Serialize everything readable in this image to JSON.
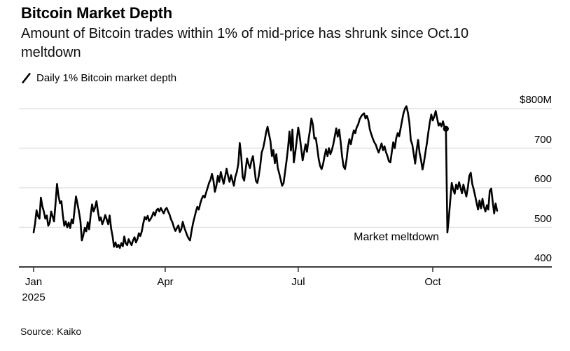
{
  "header": {
    "title": "Bitcoin Market Depth",
    "subtitle_line1": "Amount of Bitcoin trades within 1% of mid-price has shrunk since Oct.10",
    "subtitle_line2": "meltdown"
  },
  "legend": {
    "label": "Daily 1% Bitcoin market depth",
    "series_color": "#000000"
  },
  "footer": {
    "source": "Source: Kaiko"
  },
  "chart_data": {
    "type": "line",
    "title": "Bitcoin Market Depth",
    "unit": "$M",
    "ylim": [
      400,
      820
    ],
    "y_ticks": [
      800,
      700,
      600,
      500,
      400
    ],
    "y_tick_labels": [
      "$800M",
      "700",
      "600",
      "500",
      "400"
    ],
    "x_tick_labels": [
      "Jan",
      "Apr",
      "Jul",
      "Oct"
    ],
    "x_tick_day_index": [
      0,
      90,
      181,
      273
    ],
    "x_year_label": "2025",
    "grid": "horizontal",
    "legend_position": "top-left",
    "annotation": {
      "text": "Market meltdown"
    },
    "marker": {
      "day_index": 282,
      "value": 749
    },
    "series": [
      {
        "name": "Daily 1% Bitcoin market depth",
        "color": "#000000",
        "start_date": "2025-01-01",
        "frequency": "daily",
        "values": [
          487,
          510,
          543,
          528,
          522,
          575,
          553,
          540,
          522,
          530,
          504,
          512,
          540,
          528,
          515,
          560,
          610,
          580,
          561,
          566,
          530,
          504,
          515,
          500,
          512,
          498,
          520,
          510,
          545,
          578,
          560,
          540,
          517,
          467,
          480,
          499,
          490,
          513,
          495,
          530,
          558,
          540,
          550,
          566,
          540,
          517,
          525,
          508,
          518,
          531,
          520,
          508,
          530,
          497,
          478,
          451,
          462,
          450,
          456,
          448,
          460,
          452,
          477,
          460,
          455,
          470,
          462,
          455,
          467,
          475,
          462,
          470,
          485,
          478,
          490,
          510,
          526,
          520,
          529,
          516,
          521,
          528,
          538,
          530,
          543,
          547,
          540,
          549,
          542,
          535,
          545,
          549,
          540,
          532,
          520,
          512,
          500,
          491,
          498,
          505,
          488,
          495,
          514,
          500,
          490,
          480,
          472,
          467,
          490,
          510,
          525,
          540,
          552,
          545,
          560,
          572,
          580,
          575,
          588,
          600,
          612,
          620,
          635,
          618,
          590,
          605,
          630,
          615,
          640,
          625,
          610,
          628,
          648,
          630,
          615,
          632,
          618,
          605,
          628,
          640,
          660,
          713,
          680,
          627,
          618,
          645,
          674,
          660,
          650,
          668,
          680,
          650,
          618,
          612,
          630,
          655,
          689,
          700,
          718,
          740,
          754,
          735,
          718,
          680,
          695,
          662,
          685,
          650,
          636,
          620,
          605,
          612,
          640,
          668,
          700,
          742,
          694,
          747,
          664,
          690,
          720,
          752,
          730,
          700,
          669,
          690,
          710,
          691,
          720,
          745,
          775,
          760,
          724,
          726,
          700,
          673,
          655,
          647,
          660,
          680,
          697,
          680,
          700,
          685,
          695,
          710,
          730,
          750,
          729,
          747,
          715,
          680,
          654,
          647,
          670,
          702,
          723,
          710,
          730,
          745,
          738,
          753,
          760,
          773,
          780,
          785,
          788,
          775,
          782,
          770,
          747,
          735,
          724,
          715,
          709,
          698,
          689,
          700,
          712,
          695,
          705,
          690,
          680,
          667,
          664,
          690,
          715,
          700,
          725,
          738,
          730,
          750,
          770,
          788,
          800,
          806,
          790,
          765,
          720,
          709,
          685,
          661,
          695,
          721,
          688,
          670,
          646,
          665,
          690,
          712,
          740,
          765,
          785,
          770,
          780,
          794,
          775,
          757,
          763,
          755,
          768,
          753,
          749,
          487,
          525,
          570,
          612,
          596,
          585,
          608,
          597,
          614,
          600,
          586,
          608,
          592,
          578,
          600,
          630,
          638,
          610,
          596,
          580,
          562,
          545,
          568,
          548,
          572,
          552,
          540,
          556,
          545,
          592,
          598,
          565,
          535,
          560,
          542
        ]
      }
    ]
  }
}
